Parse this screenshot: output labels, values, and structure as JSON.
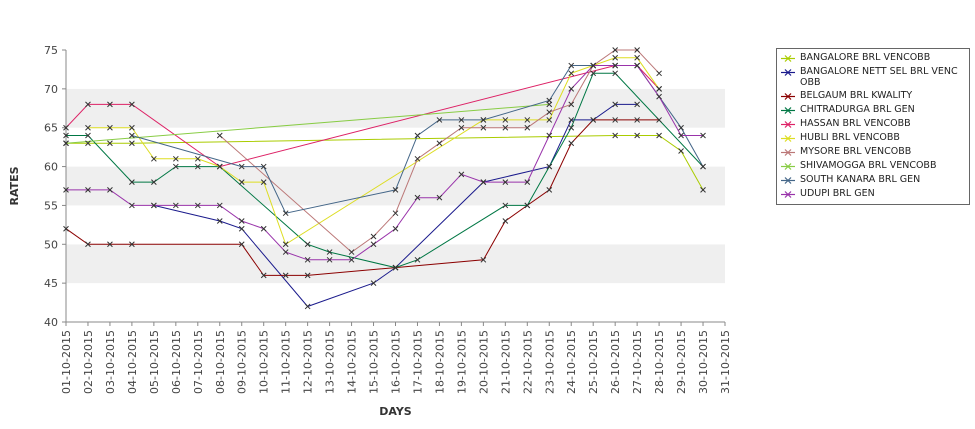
{
  "chart_data": {
    "type": "line",
    "title": "",
    "xlabel": "DAYS",
    "ylabel": "RATES",
    "ylim": [
      40,
      75
    ],
    "yticks": [
      40,
      45,
      50,
      55,
      60,
      65,
      70,
      75
    ],
    "grid": "alternating horizontal bands",
    "legend_position": "right",
    "categories": [
      "01-10-2015",
      "02-10-2015",
      "03-10-2015",
      "04-10-2015",
      "05-10-2015",
      "06-10-2015",
      "07-10-2015",
      "08-10-2015",
      "09-10-2015",
      "10-10-2015",
      "11-10-2015",
      "12-10-2015",
      "13-10-2015",
      "14-10-2015",
      "15-10-2015",
      "16-10-2015",
      "17-10-2015",
      "18-10-2015",
      "19-10-2015",
      "20-10-2015",
      "21-10-2015",
      "22-10-2015",
      "23-10-2015",
      "24-10-2015",
      "25-10-2015",
      "26-10-2015",
      "27-10-2015",
      "28-10-2015",
      "29-10-2015",
      "30-10-2015",
      "31-10-2015"
    ],
    "series": [
      {
        "name": "BANGALORE BRL VENCOBB",
        "color": "#aacc00",
        "values": [
          63,
          63,
          63,
          63,
          null,
          null,
          null,
          null,
          null,
          null,
          null,
          null,
          null,
          null,
          null,
          null,
          null,
          null,
          null,
          null,
          null,
          null,
          null,
          null,
          null,
          64,
          64,
          64,
          62,
          57,
          null
        ]
      },
      {
        "name": "BANGALORE NETT SEL BRL VENCOBB",
        "color": "#1a1a8c",
        "values": [
          null,
          null,
          null,
          null,
          55,
          null,
          null,
          53,
          52,
          null,
          null,
          42,
          null,
          null,
          45,
          47,
          null,
          null,
          null,
          58,
          null,
          null,
          60,
          66,
          66,
          68,
          68,
          null,
          null,
          null,
          null
        ]
      },
      {
        "name": "BELGAUM BRL KWALITY",
        "color": "#8b0000",
        "values": [
          52,
          50,
          50,
          50,
          null,
          null,
          null,
          null,
          50,
          46,
          46,
          46,
          null,
          null,
          null,
          47,
          null,
          null,
          null,
          48,
          53,
          55,
          57,
          63,
          66,
          66,
          66,
          66,
          null,
          null,
          null
        ]
      },
      {
        "name": "CHITRADURGA BRL GEN",
        "color": "#007744",
        "values": [
          64,
          64,
          null,
          58,
          58,
          60,
          60,
          60,
          null,
          null,
          null,
          50,
          49,
          null,
          null,
          47,
          48,
          null,
          null,
          null,
          55,
          55,
          60,
          65,
          72,
          72,
          null,
          null,
          null,
          60,
          null
        ]
      },
      {
        "name": "HASSAN BRL VENCOBB",
        "color": "#dd2266",
        "values": [
          65,
          68,
          68,
          68,
          null,
          null,
          null,
          60,
          null,
          null,
          null,
          null,
          null,
          null,
          null,
          null,
          null,
          null,
          null,
          null,
          null,
          null,
          null,
          null,
          null,
          73,
          73,
          70,
          null,
          null,
          null
        ]
      },
      {
        "name": "HUBLI BRL VENCOBB",
        "color": "#dddd22",
        "values": [
          null,
          65,
          65,
          65,
          61,
          61,
          61,
          60,
          58,
          58,
          50,
          null,
          null,
          null,
          null,
          null,
          null,
          null,
          null,
          66,
          66,
          66,
          66,
          72,
          73,
          74,
          74,
          70,
          null,
          null,
          null
        ]
      },
      {
        "name": "MYSORE BRL VENCOBB",
        "color": "#bb7777",
        "values": [
          null,
          null,
          null,
          null,
          null,
          null,
          null,
          64,
          null,
          null,
          null,
          null,
          null,
          49,
          51,
          54,
          61,
          63,
          65,
          65,
          65,
          65,
          67,
          68,
          73,
          75,
          75,
          72,
          null,
          null,
          null
        ]
      },
      {
        "name": "SHIVAMOGGA BRL VENCOBB",
        "color": "#88cc44",
        "values": [
          63,
          null,
          null,
          null,
          null,
          null,
          null,
          null,
          null,
          null,
          null,
          null,
          null,
          null,
          null,
          null,
          null,
          null,
          null,
          null,
          null,
          null,
          68,
          null,
          null,
          null,
          null,
          null,
          null,
          null,
          null
        ]
      },
      {
        "name": "SOUTH KANARA BRL GEN",
        "color": "#446688",
        "values": [
          null,
          null,
          null,
          64,
          null,
          null,
          null,
          null,
          60,
          60,
          54,
          null,
          null,
          null,
          null,
          57,
          64,
          66,
          66,
          66,
          null,
          null,
          68.5,
          73,
          73,
          73,
          73,
          null,
          65,
          60,
          null
        ]
      },
      {
        "name": "UDUPI BRL GEN",
        "color": "#9933aa",
        "values": [
          57,
          57,
          57,
          55,
          55,
          55,
          55,
          55,
          53,
          52,
          49,
          48,
          48,
          48,
          50,
          52,
          56,
          56,
          59,
          58,
          58,
          58,
          64,
          70,
          73,
          73,
          73,
          69,
          64,
          64,
          null
        ]
      }
    ]
  }
}
